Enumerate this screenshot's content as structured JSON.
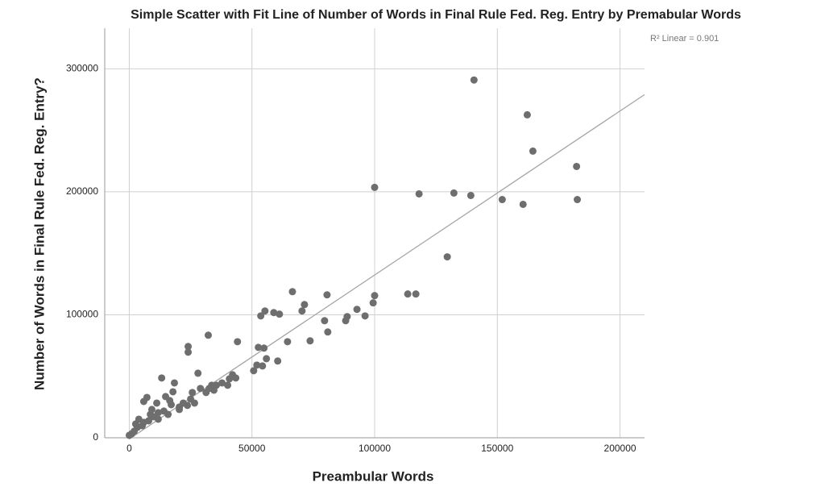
{
  "chart_data": {
    "type": "scatter",
    "title": "Simple Scatter with Fit Line of Number of Words in Final Rule Fed. Reg. Entry by Premabular Words",
    "x_label": "Preambular Words",
    "y_label": "Number of Words in Final Rule Fed. Reg. Entry?",
    "annotation": "R² Linear = 0.901",
    "color": "#6e6e6e",
    "fit_color": "#a6a6a6",
    "grid": true,
    "xlim": [
      -10000,
      210000
    ],
    "ylim": [
      0,
      333000
    ],
    "xticks": [
      0,
      50000,
      100000,
      150000,
      200000
    ],
    "yticks": [
      0,
      100000,
      200000,
      300000
    ],
    "fit_line": {
      "x": [
        0,
        210000
      ],
      "y": [
        -1000,
        279000
      ]
    },
    "x": [
      140500,
      162200,
      164500,
      182300,
      182600,
      160500,
      152000,
      139200,
      132300,
      118100,
      100000,
      129600,
      116800,
      113500,
      100000,
      99400,
      96100,
      92800,
      88800,
      88200,
      80600,
      79600,
      80900,
      73700,
      71400,
      70400,
      66500,
      64500,
      60500,
      61200,
      58900,
      55300,
      53600,
      54900,
      52600,
      55900,
      54300,
      52000,
      50700,
      44100,
      43400,
      42100,
      40800,
      40100,
      37800,
      35500,
      33600,
      32200,
      32600,
      31300,
      29000,
      28000,
      24000,
      24000,
      25700,
      25000,
      26600,
      23700,
      20400,
      18400,
      17800,
      17100,
      14800,
      13200,
      14100,
      11800,
      9200,
      7200,
      5900,
      9900,
      5900,
      3900,
      3300,
      2000,
      1000,
      5300,
      7900,
      11800,
      15800,
      20400,
      2600,
      0,
      11200,
      8600,
      16500,
      22000,
      34500
    ],
    "values": [
      290900,
      262600,
      233100,
      220600,
      193700,
      189800,
      193700,
      197000,
      199000,
      198300,
      203600,
      147100,
      116900,
      116900,
      115600,
      109700,
      99100,
      104400,
      98500,
      95200,
      116200,
      95200,
      86000,
      78800,
      108300,
      103100,
      118800,
      78100,
      62400,
      100500,
      101800,
      103100,
      99100,
      72900,
      73500,
      64300,
      58400,
      59100,
      54500,
      78100,
      48600,
      51200,
      47900,
      42700,
      44600,
      42700,
      42700,
      83400,
      40100,
      36800,
      40100,
      52500,
      74200,
      69600,
      36800,
      31500,
      28200,
      26300,
      25000,
      44600,
      37400,
      26900,
      33500,
      48600,
      21700,
      20400,
      23000,
      32800,
      29500,
      17100,
      12500,
      15100,
      8500,
      5300,
      3300,
      9800,
      13800,
      15100,
      19000,
      23000,
      11200,
      2000,
      28200,
      19000,
      30200,
      28200,
      38700
    ]
  }
}
